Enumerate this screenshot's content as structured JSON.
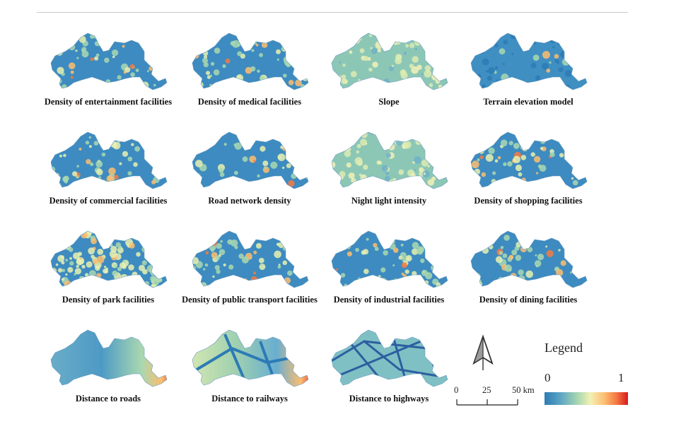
{
  "panels": [
    {
      "caption": "Density of entertainment facilities",
      "scheme": "hotspots"
    },
    {
      "caption": "Density of medical facilities",
      "scheme": "hotspots"
    },
    {
      "caption": "Slope",
      "scheme": "yellowish"
    },
    {
      "caption": "Terrain elevation model",
      "scheme": "elevation"
    },
    {
      "caption": "Density of commercial facilities",
      "scheme": "hotspots"
    },
    {
      "caption": "Road network density",
      "scheme": "mixed"
    },
    {
      "caption": "Night light intensity",
      "scheme": "yellowish"
    },
    {
      "caption": "Density of shopping facilities",
      "scheme": "hotspots"
    },
    {
      "caption": "Density of park facilities",
      "scheme": "speckled"
    },
    {
      "caption": "Density of public transport facilities",
      "scheme": "hotspots"
    },
    {
      "caption": "Density of industrial facilities",
      "scheme": "hotspots"
    },
    {
      "caption": "Density of dining facilities",
      "scheme": "hotspots"
    },
    {
      "caption": "Distance to roads",
      "scheme": "gradient-roads"
    },
    {
      "caption": "Distance to railways",
      "scheme": "gradient-rail"
    },
    {
      "caption": "Distance to highways",
      "scheme": "network"
    }
  ],
  "legend": {
    "title": "Legend",
    "min_label": "0",
    "max_label": "1",
    "colors": [
      "#2c7bb6",
      "#a9d8b0",
      "#f3f0b5",
      "#fdbd6f",
      "#d7191c"
    ]
  },
  "scale_bar": {
    "labels": [
      "0",
      "25",
      "50 km"
    ]
  },
  "north_arrow": {
    "icon": "north-arrow-icon"
  }
}
